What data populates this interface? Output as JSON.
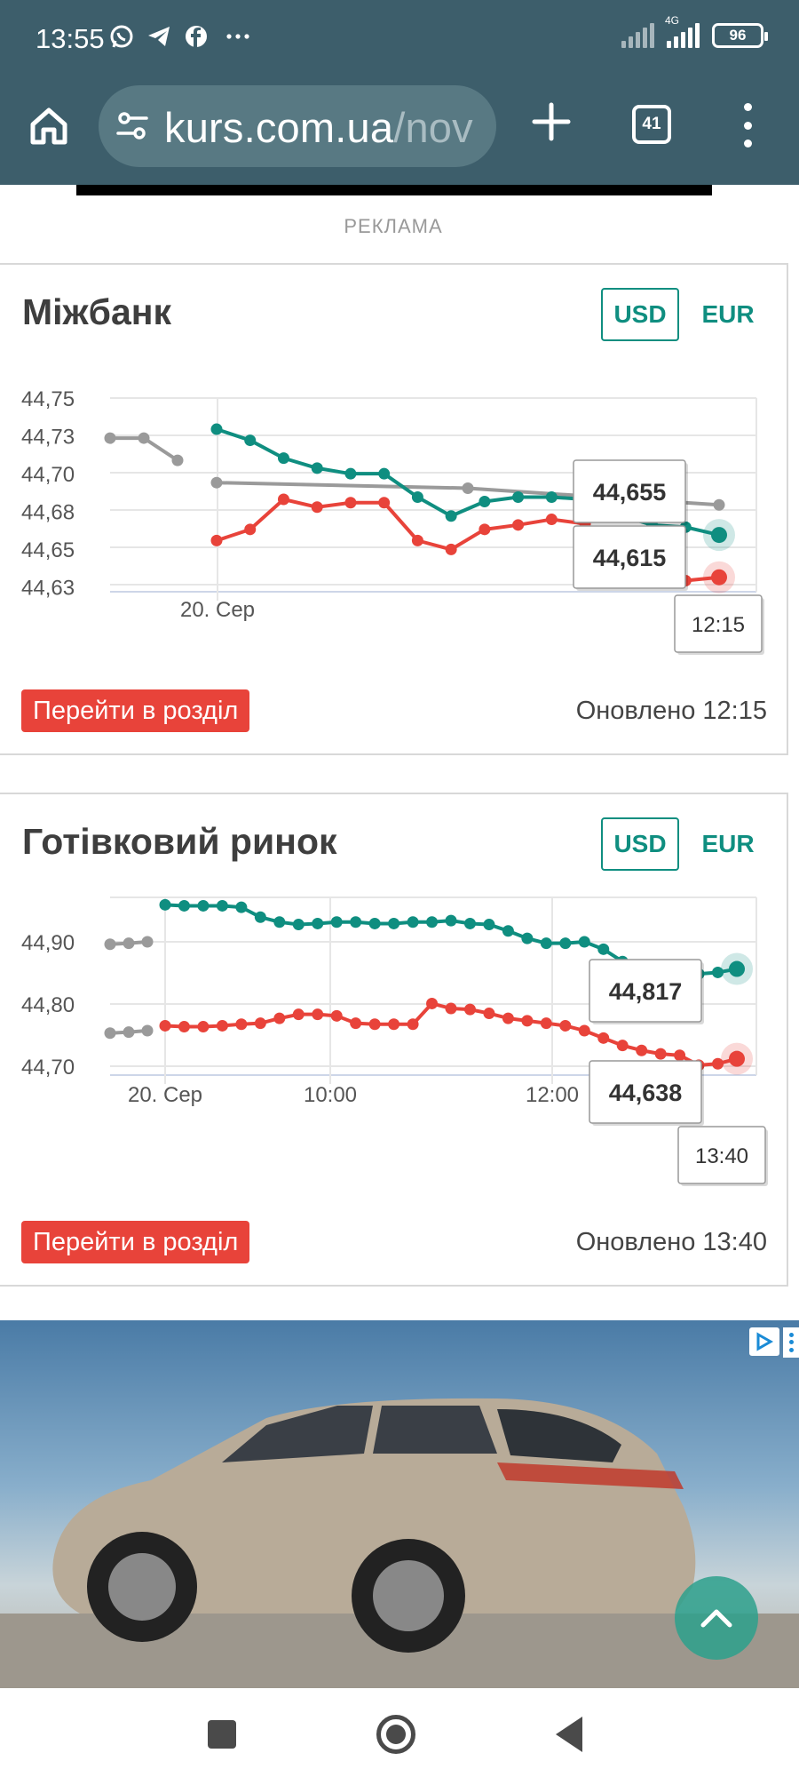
{
  "status_bar": {
    "time": "13:55",
    "network": "4G",
    "battery": "96",
    "icons": [
      "whatsapp-icon",
      "telegram-icon",
      "facebook-icon",
      "more-dots-icon",
      "wifi-signal-icon",
      "cell-signal-icon",
      "battery-icon"
    ]
  },
  "browser": {
    "url_host": "kurs.com.ua",
    "url_path": "/nov",
    "tab_count": "41"
  },
  "ad_label": "РЕКЛАМА",
  "interbank": {
    "title": "Міжбанк",
    "tabs": [
      "USD",
      "EUR"
    ],
    "active_tab": "USD",
    "button": "Перейти в розділ",
    "updated": "Оновлено 12:15",
    "tooltip_buy": "44,655",
    "tooltip_sell": "44,615",
    "tooltip_time": "12:15"
  },
  "cash": {
    "title": "Готівковий ринок",
    "tabs": [
      "USD",
      "EUR"
    ],
    "active_tab": "USD",
    "button": "Перейти в розділ",
    "updated": "Оновлено 13:40",
    "tooltip_buy": "44,817",
    "tooltip_sell": "44,638",
    "tooltip_time": "13:40"
  },
  "colors": {
    "green": "#0f8e80",
    "red": "#e8433a",
    "grey": "#9a9a9a",
    "header": "#3d5e6b"
  },
  "chart_data": [
    {
      "type": "line",
      "name": "interbank",
      "y_ticks": [
        "44,75",
        "44,73",
        "44,70",
        "44,68",
        "44,65",
        "44,63"
      ],
      "ylim": [
        44.615,
        44.765
      ],
      "x_ticks": [
        "20. Сер"
      ],
      "grid": true,
      "series": [
        {
          "color": "#9a9a9a",
          "values": [
            44.745,
            44.745,
            44.725
          ]
        },
        {
          "color": "#9a9a9a",
          "values": [
            44.705,
            44.7,
            44.685
          ]
        },
        {
          "color": "#0f8e80",
          "values": [
            44.753,
            44.743,
            44.727,
            44.718,
            44.713,
            44.713,
            44.692,
            44.675,
            44.688,
            44.692,
            44.692,
            44.69,
            44.676,
            44.667,
            44.665,
            44.658
          ]
        },
        {
          "color": "#e8433a",
          "values": [
            44.653,
            44.663,
            44.69,
            44.683,
            44.687,
            44.687,
            44.653,
            44.645,
            44.663,
            44.667,
            44.672,
            44.668,
            44.642,
            44.622,
            44.617,
            44.62
          ]
        }
      ]
    },
    {
      "type": "line",
      "name": "cash",
      "y_ticks": [
        "44,90",
        "44,80",
        "44,70"
      ],
      "ylim": [
        44.605,
        44.965
      ],
      "x_ticks": [
        "20. Сер",
        "10:00",
        "12:00"
      ],
      "grid": true,
      "series": [
        {
          "color": "#9a9a9a",
          "values": [
            44.87,
            44.872,
            44.875
          ]
        },
        {
          "color": "#9a9a9a",
          "values": [
            44.69,
            44.692,
            44.695
          ]
        },
        {
          "color": "#0f8e80",
          "values": [
            44.95,
            44.948,
            44.948,
            44.948,
            44.945,
            44.925,
            44.915,
            44.91,
            44.912,
            44.915,
            44.915,
            44.912,
            44.912,
            44.915,
            44.915,
            44.918,
            44.912,
            44.91,
            44.897,
            44.882,
            44.872,
            44.872,
            44.875,
            44.86,
            44.835,
            44.82,
            44.818,
            44.82,
            44.81,
            44.813,
            44.82
          ]
        },
        {
          "color": "#e8433a",
          "values": [
            44.705,
            44.703,
            44.703,
            44.705,
            44.708,
            44.71,
            44.72,
            44.728,
            44.728,
            44.725,
            44.71,
            44.708,
            44.708,
            44.708,
            44.75,
            44.74,
            44.738,
            44.73,
            44.72,
            44.715,
            44.71,
            44.705,
            44.695,
            44.68,
            44.665,
            44.655,
            44.648,
            44.645,
            44.625,
            44.628,
            44.638
          ]
        }
      ]
    }
  ]
}
